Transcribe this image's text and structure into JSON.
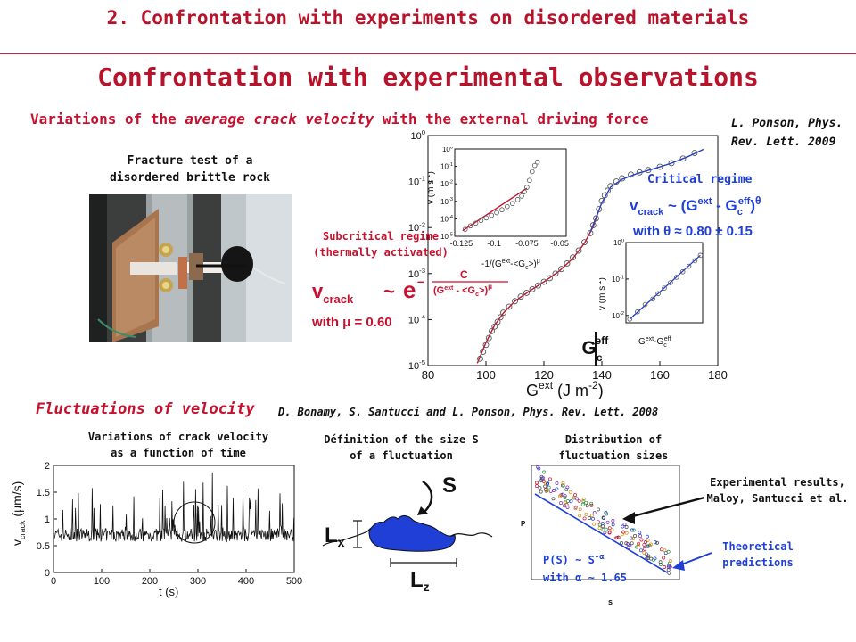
{
  "header": {
    "section_title": "2. Confrontation with experiments on disordered materials"
  },
  "slide": {
    "main_title": "Confrontation with experimental observations",
    "velocity_subtitle_a": "Variations of the ",
    "velocity_subtitle_b": "average crack velocity",
    "velocity_subtitle_c": " with the external driving force",
    "ref_ponson_1": "L. Ponson, Phys.",
    "ref_ponson_2": "Rev. Lett. 2009",
    "fracture_test_1": "Fracture test of a",
    "fracture_test_2": "disordered brittle rock",
    "subcritical_1": "Subcritical regime",
    "subcritical_2": "(thermally activated)",
    "critical_label": "Critical regime",
    "vcrack_label": "v",
    "vcrack_sub": "crack",
    "tilde": "~",
    "e_base": "e",
    "exp_minus": "–",
    "exp_num": "C",
    "exp_den": "(G",
    "exp_den_sup": "ext",
    "exp_den_b": " - <G",
    "exp_den_sub": "c",
    "exp_den_c": ">)",
    "exp_den_mu": "μ",
    "mu_line": "with μ = 0.60",
    "crit_formula_a": "v",
    "crit_formula_sub": "crack",
    "crit_formula_b": " ~ (G",
    "crit_formula_sup1": "ext",
    "crit_formula_c": " - G",
    "crit_formula_sub2": "c",
    "crit_formula_sup2": "eff",
    "crit_formula_d": ")",
    "crit_formula_theta": "θ",
    "theta_line": "with θ ≈ 0.80 ± 0.15",
    "fluct_title": "Fluctuations of velocity",
    "ref_bonamy": "D. Bonamy, S. Santucci and L. Ponson, Phys. Rev. Lett. 2008",
    "vt_caption_1": "Variations of crack velocity",
    "vt_caption_2": "as a function of time",
    "size_caption_1": "Définition of the size S",
    "size_caption_2": "of a fluctuation",
    "dist_caption_1": "Distribution of",
    "dist_caption_2": "fluctuation sizes",
    "exp_results_1": "Experimental results,",
    "exp_results_2": "Maloy, Santucci et al.",
    "theory_1": "Theoretical",
    "theory_2": "predictions",
    "ps_line_1": "P(S)  ~ S",
    "ps_exp": "-α",
    "ps_line_2": "with α ~ 1.65",
    "diagram_S": "S",
    "diagram_Lx": "L",
    "diagram_Lx_sub": "x",
    "diagram_Lz": "L",
    "diagram_Lz_sub": "z"
  },
  "colors": {
    "accent_red": "#c8102e",
    "accent_blue": "#1f3fd6",
    "title_red": "#b8132b"
  },
  "chart_data": [
    {
      "type": "scatter",
      "id": "main",
      "xlabel_a": "G",
      "xlabel_sup": "ext",
      "xlabel_b": " (J m",
      "xlabel_sup2": "-2",
      "xlabel_c": ")",
      "xticks": [
        "80",
        "100",
        "120",
        "140",
        "160",
        "180"
      ],
      "xlim": [
        80,
        180
      ],
      "yscale": "log",
      "ylim_exp": [
        -5,
        0
      ],
      "yticks_base": "10",
      "yticks_exp": [
        "0",
        "-1",
        "-2",
        "-3",
        "-4",
        "-5"
      ],
      "gc_label_a": "G",
      "gc_label_sub": "c",
      "gc_label_sup": "eff",
      "gc_x": 138,
      "series": [
        {
          "values": [
            [
              98,
              -4.85
            ],
            [
              99,
              -4.7
            ],
            [
              100,
              -4.55
            ],
            [
              101,
              -4.4
            ],
            [
              102,
              -4.25
            ],
            [
              103,
              -4.15
            ],
            [
              104,
              -4.05
            ],
            [
              105,
              -3.95
            ],
            [
              106,
              -3.85
            ],
            [
              108,
              -3.72
            ],
            [
              110,
              -3.6
            ],
            [
              112,
              -3.5
            ],
            [
              114,
              -3.42
            ],
            [
              116,
              -3.34
            ],
            [
              118,
              -3.26
            ],
            [
              120,
              -3.18
            ],
            [
              122,
              -3.1
            ],
            [
              124,
              -3.0
            ],
            [
              126,
              -2.9
            ],
            [
              128,
              -2.78
            ],
            [
              130,
              -2.65
            ],
            [
              132,
              -2.5
            ],
            [
              134,
              -2.32
            ],
            [
              136,
              -2.12
            ],
            [
              137,
              -1.95
            ],
            [
              138,
              -1.8
            ],
            [
              139,
              -1.6
            ],
            [
              140,
              -1.42
            ],
            [
              141,
              -1.3
            ],
            [
              142,
              -1.2
            ],
            [
              143,
              -1.1
            ],
            [
              145,
              -1.0
            ],
            [
              147,
              -0.93
            ],
            [
              150,
              -0.85
            ],
            [
              153,
              -0.8
            ],
            [
              156,
              -0.75
            ],
            [
              160,
              -0.68
            ],
            [
              164,
              -0.6
            ],
            [
              168,
              -0.5
            ],
            [
              172,
              -0.38
            ]
          ]
        },
        {
          "values": [
            [
              97,
              -4.95
            ],
            [
              100,
              -4.5
            ],
            [
              103,
              -4.12
            ],
            [
              106,
              -3.86
            ],
            [
              110,
              -3.6
            ],
            [
              115,
              -3.38
            ],
            [
              120,
              -3.18
            ],
            [
              125,
              -2.96
            ],
            [
              130,
              -2.67
            ],
            [
              134,
              -2.34
            ],
            [
              137,
              -1.98
            ],
            [
              139,
              -1.62
            ]
          ]
        },
        {
          "values": [
            [
              136,
              -2.1
            ],
            [
              138,
              -1.78
            ],
            [
              140,
              -1.46
            ],
            [
              143,
              -1.12
            ],
            [
              147,
              -0.95
            ],
            [
              152,
              -0.83
            ],
            [
              158,
              -0.72
            ],
            [
              164,
              -0.6
            ],
            [
              170,
              -0.45
            ],
            [
              175,
              -0.3
            ]
          ]
        }
      ]
    },
    {
      "type": "scatter",
      "id": "inset_subcritical",
      "xlabel": "-1/(G",
      "xlabel_sup": "ext",
      "xlabel_b": "-<G",
      "xlabel_sub": "c",
      "xlabel_c": ">)",
      "xlabel_mu": "μ",
      "ylabel": "v (m s",
      "ylabel_sup": "-1",
      "ylabel_b": ")",
      "xticks": [
        "-0.125",
        "-0.1",
        "-0.075",
        "-0.05"
      ],
      "xlim": [
        -0.13,
        -0.045
      ],
      "yticks_exp": [
        "0",
        "-1",
        "-2",
        "-3",
        "-4",
        "-5"
      ],
      "yticks_base": "10",
      "series": [
        {
          "values": [
            [
              -0.122,
              -4.6
            ],
            [
              -0.118,
              -4.4
            ],
            [
              -0.114,
              -4.25
            ],
            [
              -0.11,
              -4.1
            ],
            [
              -0.106,
              -3.95
            ],
            [
              -0.102,
              -3.8
            ],
            [
              -0.098,
              -3.65
            ],
            [
              -0.094,
              -3.48
            ],
            [
              -0.09,
              -3.3
            ],
            [
              -0.086,
              -3.12
            ],
            [
              -0.082,
              -2.9
            ],
            [
              -0.079,
              -2.7
            ],
            [
              -0.077,
              -2.45
            ],
            [
              -0.075,
              -2.2
            ],
            [
              -0.073,
              -1.8
            ],
            [
              -0.071,
              -1.3
            ],
            [
              -0.069,
              -0.95
            ],
            [
              -0.067,
              -0.75
            ]
          ]
        },
        {
          "values": [
            [
              -0.124,
              -4.68
            ],
            [
              -0.075,
              -2.25
            ]
          ]
        }
      ]
    },
    {
      "type": "scatter",
      "id": "inset_critical",
      "ylabel": "v (m s",
      "ylabel_sup": "-1",
      "ylabel_b": ")",
      "xlabel_a": "G",
      "xlabel_sup": "ext",
      "xlabel_b": "-G",
      "xlabel_sub": "c",
      "xlabel_sup2": "eff",
      "yscale": "log",
      "yticks_base": "10",
      "yticks_exp": [
        "0",
        "-1",
        "-2"
      ],
      "series": [
        {
          "values": [
            [
              0.05,
              -2.1
            ],
            [
              0.15,
              -1.9
            ],
            [
              0.25,
              -1.7
            ],
            [
              0.35,
              -1.55
            ],
            [
              0.42,
              -1.4
            ],
            [
              0.5,
              -1.25
            ],
            [
              0.58,
              -1.1
            ],
            [
              0.66,
              -0.95
            ],
            [
              0.74,
              -0.8
            ],
            [
              0.82,
              -0.65
            ],
            [
              0.9,
              -0.5
            ],
            [
              0.97,
              -0.35
            ]
          ]
        }
      ]
    },
    {
      "type": "line",
      "id": "velocity_time",
      "xlabel": "t (s)",
      "ylabel_a": "v",
      "ylabel_sub": "crack",
      "ylabel_b": " (μm/s)",
      "xlim": [
        0,
        500
      ],
      "ylim": [
        0,
        2
      ],
      "xticks": [
        "0",
        "100",
        "200",
        "300",
        "400",
        "500"
      ],
      "yticks": [
        "0",
        "0.5",
        "1",
        "1.5",
        "2"
      ]
    },
    {
      "type": "scatter",
      "id": "size_distribution",
      "xlabel": "s",
      "ylabel": "P",
      "yscale": "log",
      "xscale": "log"
    }
  ]
}
